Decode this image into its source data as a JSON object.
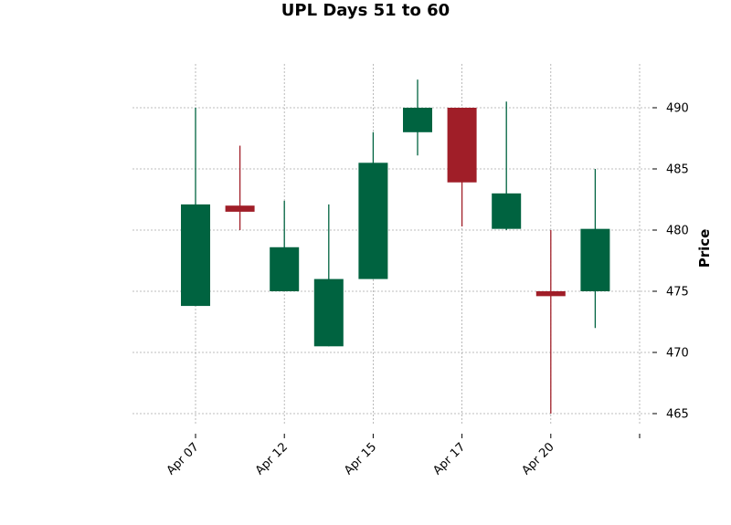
{
  "chart_data": {
    "type": "candlestick",
    "title": "UPL Days 51 to 60",
    "ylabel": "Price",
    "ylim": [
      463.5,
      493.5
    ],
    "y_ticks": [
      465,
      470,
      475,
      480,
      485,
      490
    ],
    "x_tick_labels": [
      "Apr 07",
      "Apr 12",
      "Apr 15",
      "Apr 17",
      "Apr 20",
      ""
    ],
    "x_tick_positions": [
      0,
      2,
      4,
      6,
      8,
      10
    ],
    "grid": true,
    "colors": {
      "up": "#006340",
      "down": "#a01e28",
      "grid": "#a8a8a8"
    },
    "candles": [
      {
        "x": 0,
        "open": 473.8,
        "high": 490.0,
        "low": 473.8,
        "close": 482.1
      },
      {
        "x": 1,
        "open": 482.0,
        "high": 486.9,
        "low": 480.0,
        "close": 481.5
      },
      {
        "x": 2,
        "open": 475.0,
        "high": 482.4,
        "low": 475.0,
        "close": 478.6
      },
      {
        "x": 3,
        "open": 470.5,
        "high": 482.1,
        "low": 470.5,
        "close": 476.0
      },
      {
        "x": 4,
        "open": 476.0,
        "high": 488.0,
        "low": 476.0,
        "close": 485.5
      },
      {
        "x": 5,
        "open": 488.0,
        "high": 492.3,
        "low": 486.1,
        "close": 490.0
      },
      {
        "x": 6,
        "open": 490.0,
        "high": 490.0,
        "low": 480.3,
        "close": 483.9
      },
      {
        "x": 7,
        "open": 480.1,
        "high": 490.5,
        "low": 480.0,
        "close": 483.0
      },
      {
        "x": 8,
        "open": 475.0,
        "high": 480.0,
        "low": 465.0,
        "close": 474.6
      },
      {
        "x": 9,
        "open": 475.0,
        "high": 485.0,
        "low": 472.0,
        "close": 480.1
      }
    ]
  }
}
